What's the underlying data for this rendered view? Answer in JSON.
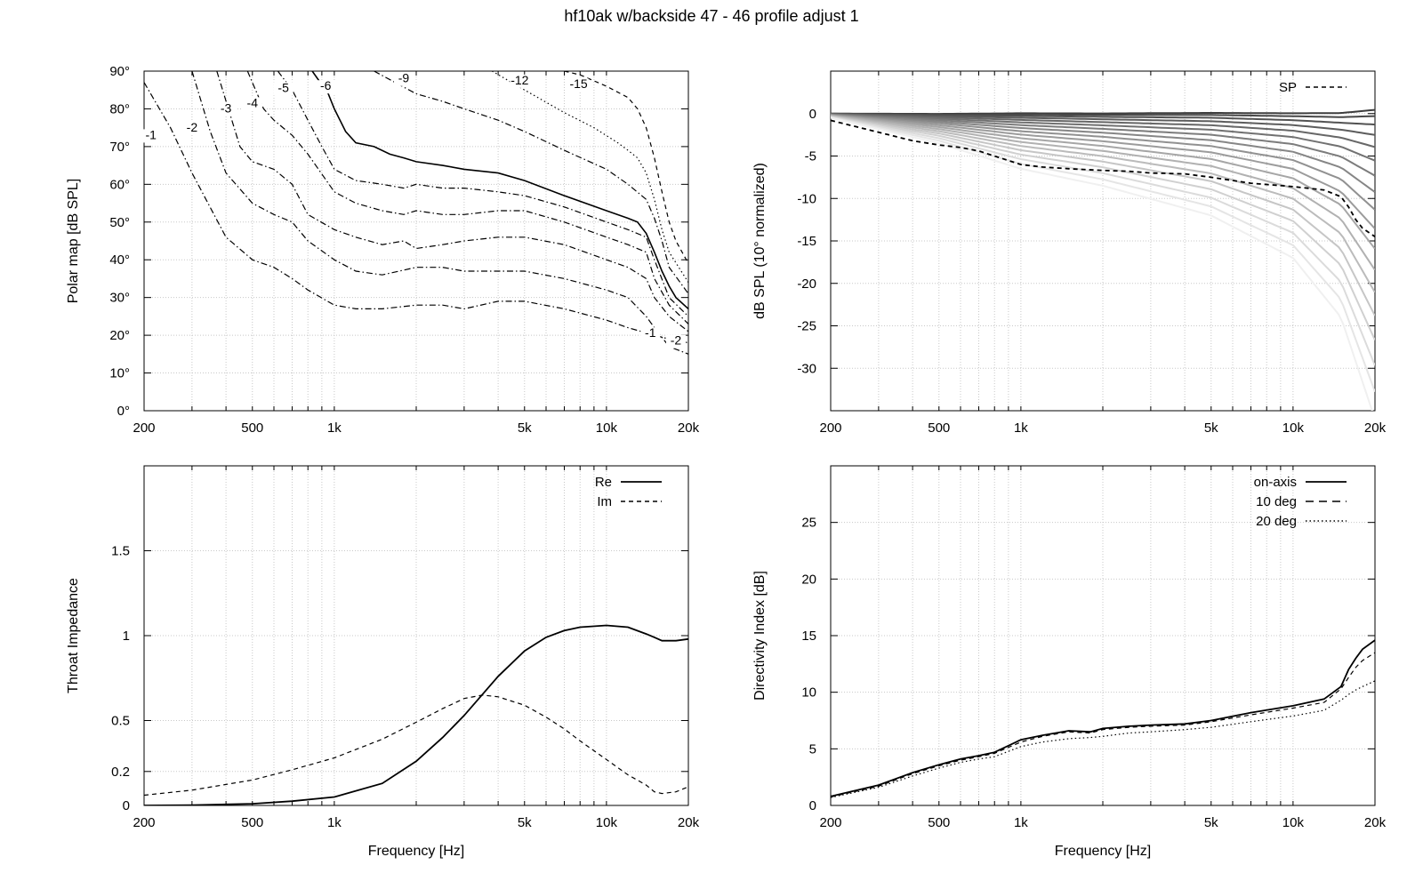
{
  "title": "hf10ak w/backside 47 - 46 profile adjust 1",
  "colors": {
    "axis": "#000000",
    "grid": "#c8c8c8"
  },
  "chart_data": [
    {
      "id": "polar",
      "type": "line",
      "subtype": "contour",
      "xscale": "log",
      "xlim": [
        200,
        20000
      ],
      "ylim": [
        0,
        90
      ],
      "xticks": [
        {
          "v": 200,
          "label": "200"
        },
        {
          "v": 500,
          "label": "500"
        },
        {
          "v": 1000,
          "label": "1k"
        },
        {
          "v": 5000,
          "label": "5k"
        },
        {
          "v": 10000,
          "label": "10k"
        },
        {
          "v": 20000,
          "label": "20k"
        }
      ],
      "yticks": [
        {
          "v": 0,
          "label": "0°"
        },
        {
          "v": 10,
          "label": "10°"
        },
        {
          "v": 20,
          "label": "20°"
        },
        {
          "v": 30,
          "label": "30°"
        },
        {
          "v": 40,
          "label": "40°"
        },
        {
          "v": 50,
          "label": "50°"
        },
        {
          "v": 60,
          "label": "60°"
        },
        {
          "v": 70,
          "label": "70°"
        },
        {
          "v": 80,
          "label": "80°"
        },
        {
          "v": 90,
          "label": "90°"
        }
      ],
      "xlabel": "",
      "ylabel": "Polar map [dB SPL]",
      "grid": true,
      "series": [
        {
          "name": "-1",
          "style": "dashdot",
          "x": [
            200,
            250,
            300,
            400,
            500,
            600,
            700,
            800,
            1000,
            1200,
            1500,
            2000,
            2500,
            3000,
            4000,
            5000,
            7000,
            10000,
            12000,
            15000,
            17000,
            20000
          ],
          "y": [
            87,
            75,
            63,
            46,
            40,
            38,
            35,
            32,
            28,
            27,
            27,
            28,
            28,
            27,
            29,
            29,
            27,
            24,
            22,
            20,
            19,
            18
          ]
        },
        {
          "name": "-2",
          "style": "dashdot",
          "x": [
            300,
            350,
            400,
            500,
            600,
            700,
            800,
            1000,
            1200,
            1500,
            2000,
            2500,
            3000,
            4000,
            5000,
            7000,
            10000,
            12000,
            14000,
            15000,
            17000,
            20000
          ],
          "y": [
            90,
            74,
            63,
            55,
            52,
            50,
            45,
            40,
            37,
            36,
            38,
            38,
            37,
            37,
            37,
            35,
            32,
            30,
            25,
            22,
            17,
            15
          ]
        },
        {
          "name": "-3",
          "style": "dashdot",
          "x": [
            370,
            450,
            500,
            600,
            700,
            800,
            1000,
            1200,
            1500,
            1800,
            2000,
            2500,
            3000,
            4000,
            5000,
            7000,
            10000,
            12000,
            14000,
            15000,
            17000,
            20000
          ],
          "y": [
            90,
            70,
            66,
            64,
            60,
            52,
            48,
            46,
            44,
            45,
            43,
            44,
            45,
            46,
            46,
            44,
            40,
            38,
            35,
            30,
            25,
            21
          ]
        },
        {
          "name": "-4",
          "style": "dashdot",
          "x": [
            480,
            550,
            600,
            700,
            800,
            1000,
            1200,
            1500,
            1800,
            2000,
            2500,
            3000,
            4000,
            5000,
            7000,
            10000,
            12000,
            14000,
            15000,
            17000,
            20000
          ],
          "y": [
            90,
            80,
            77,
            73,
            68,
            58,
            55,
            53,
            52,
            53,
            52,
            52,
            53,
            53,
            50,
            46,
            44,
            42,
            35,
            28,
            23
          ]
        },
        {
          "name": "-5",
          "style": "dashdot",
          "x": [
            620,
            700,
            800,
            900,
            1000,
            1200,
            1500,
            1800,
            2000,
            2500,
            3000,
            4000,
            5000,
            7000,
            10000,
            12000,
            14000,
            15000,
            17000,
            20000
          ],
          "y": [
            90,
            85,
            77,
            70,
            64,
            61,
            60,
            59,
            60,
            59,
            59,
            58,
            57,
            54,
            50,
            48,
            46,
            40,
            30,
            25
          ]
        },
        {
          "name": "-6",
          "style": "solid",
          "x": [
            830,
            950,
            1000,
            1100,
            1200,
            1400,
            1600,
            1800,
            2000,
            2500,
            3000,
            4000,
            5000,
            7000,
            10000,
            12000,
            13000,
            14000,
            15000,
            16000,
            17000,
            18000,
            20000
          ],
          "y": [
            90,
            84,
            80,
            74,
            71,
            70,
            68,
            67,
            66,
            65,
            64,
            63,
            61,
            57,
            53,
            51,
            50,
            47,
            42,
            37,
            33,
            30,
            27
          ]
        },
        {
          "name": "-9",
          "style": "dashdot",
          "x": [
            1400,
            2000,
            2500,
            3000,
            4000,
            5000,
            7000,
            10000,
            12000,
            14000,
            15000,
            16000,
            17000,
            20000
          ],
          "y": [
            90,
            84,
            82,
            80,
            77,
            74,
            69,
            64,
            60,
            56,
            51,
            45,
            38,
            31
          ]
        },
        {
          "name": "-12",
          "style": "dotted",
          "x": [
            3800,
            5000,
            7000,
            9000,
            11000,
            12000,
            13000,
            14000,
            15000,
            16000,
            17000,
            20000
          ],
          "y": [
            90,
            85,
            79,
            75,
            71,
            69,
            67,
            63,
            56,
            48,
            42,
            34
          ]
        },
        {
          "name": "-15",
          "style": "dashed",
          "x": [
            7000,
            8000,
            10000,
            12000,
            13000,
            14000,
            15000,
            16000,
            17000,
            18000,
            20000
          ],
          "y": [
            90,
            89,
            86,
            83,
            80,
            75,
            67,
            58,
            50,
            45,
            39
          ]
        }
      ]
    },
    {
      "id": "normalized",
      "type": "line",
      "xscale": "log",
      "xlim": [
        200,
        20000
      ],
      "ylim": [
        -35,
        5
      ],
      "xticks": [
        {
          "v": 200,
          "label": "200"
        },
        {
          "v": 500,
          "label": "500"
        },
        {
          "v": 1000,
          "label": "1k"
        },
        {
          "v": 5000,
          "label": "5k"
        },
        {
          "v": 10000,
          "label": "10k"
        },
        {
          "v": 20000,
          "label": "20k"
        }
      ],
      "yticks": [
        {
          "v": 0,
          "label": "0"
        },
        {
          "v": -5,
          "label": "-5"
        },
        {
          "v": -10,
          "label": "-10"
        },
        {
          "v": -15,
          "label": "-15"
        },
        {
          "v": -20,
          "label": "-20"
        },
        {
          "v": -25,
          "label": "-25"
        },
        {
          "v": -30,
          "label": "-30"
        }
      ],
      "xlabel": "",
      "ylabel": "dB SPL (10° normalized)",
      "grid": true,
      "legend": "top-right",
      "family": {
        "x": [
          200,
          500,
          1000,
          2000,
          5000,
          10000,
          15000,
          20000
        ],
        "min": [
          -0.5,
          -3.5,
          -6.5,
          -8.5,
          -12,
          -17,
          -24,
          -36
        ],
        "max": [
          0,
          0,
          0.1,
          0.1,
          0.2,
          0.2,
          0.3,
          0.8
        ],
        "count": 18
      },
      "series": [
        {
          "name": "SP",
          "style": "dashed",
          "x": [
            200,
            300,
            400,
            500,
            600,
            700,
            800,
            1000,
            1200,
            1500,
            2000,
            2500,
            3000,
            4000,
            5000,
            7000,
            10000,
            13000,
            15000,
            16000,
            17000,
            18000,
            20000
          ],
          "y": [
            -0.8,
            -2.2,
            -3.2,
            -3.7,
            -4,
            -4.4,
            -5,
            -6,
            -6.3,
            -6.5,
            -6.7,
            -6.8,
            -7,
            -7.1,
            -7.5,
            -8.2,
            -8.6,
            -9,
            -9.8,
            -11,
            -12.5,
            -13.5,
            -14.5
          ]
        }
      ]
    },
    {
      "id": "impedance",
      "type": "line",
      "xscale": "log",
      "xlim": [
        200,
        20000
      ],
      "ylim": [
        0,
        2
      ],
      "xticks": [
        {
          "v": 200,
          "label": "200"
        },
        {
          "v": 500,
          "label": "500"
        },
        {
          "v": 1000,
          "label": "1k"
        },
        {
          "v": 5000,
          "label": "5k"
        },
        {
          "v": 10000,
          "label": "10k"
        },
        {
          "v": 20000,
          "label": "20k"
        }
      ],
      "yticks": [
        {
          "v": 0,
          "label": "0"
        },
        {
          "v": 0.2,
          "label": "0.2"
        },
        {
          "v": 0.5,
          "label": "0.5"
        },
        {
          "v": 1,
          "label": "1"
        },
        {
          "v": 1.5,
          "label": "1.5"
        }
      ],
      "xlabel": "Frequency [Hz]",
      "ylabel": "Throat Impedance",
      "grid": true,
      "legend": "top-right",
      "series": [
        {
          "name": "Re",
          "style": "solid",
          "x": [
            200,
            300,
            500,
            700,
            1000,
            1500,
            2000,
            2500,
            3000,
            4000,
            5000,
            6000,
            7000,
            8000,
            10000,
            12000,
            14000,
            15000,
            16000,
            18000,
            20000
          ],
          "y": [
            0,
            0.002,
            0.01,
            0.025,
            0.05,
            0.13,
            0.26,
            0.4,
            0.53,
            0.76,
            0.91,
            0.99,
            1.03,
            1.05,
            1.06,
            1.05,
            1.01,
            0.99,
            0.97,
            0.97,
            0.98
          ]
        },
        {
          "name": "Im",
          "style": "dashed",
          "x": [
            200,
            300,
            500,
            700,
            1000,
            1500,
            2000,
            2500,
            3000,
            3500,
            4000,
            5000,
            6000,
            7000,
            8000,
            10000,
            12000,
            14000,
            15000,
            16000,
            18000,
            20000
          ],
          "y": [
            0.06,
            0.09,
            0.15,
            0.21,
            0.28,
            0.39,
            0.49,
            0.57,
            0.63,
            0.65,
            0.64,
            0.59,
            0.52,
            0.45,
            0.38,
            0.27,
            0.18,
            0.12,
            0.08,
            0.07,
            0.08,
            0.11
          ]
        }
      ]
    },
    {
      "id": "directivity",
      "type": "line",
      "xscale": "log",
      "xlim": [
        200,
        20000
      ],
      "ylim": [
        0,
        30
      ],
      "xticks": [
        {
          "v": 200,
          "label": "200"
        },
        {
          "v": 500,
          "label": "500"
        },
        {
          "v": 1000,
          "label": "1k"
        },
        {
          "v": 5000,
          "label": "5k"
        },
        {
          "v": 10000,
          "label": "10k"
        },
        {
          "v": 20000,
          "label": "20k"
        }
      ],
      "yticks": [
        {
          "v": 0,
          "label": "0"
        },
        {
          "v": 5,
          "label": "5"
        },
        {
          "v": 10,
          "label": "10"
        },
        {
          "v": 15,
          "label": "15"
        },
        {
          "v": 20,
          "label": "20"
        },
        {
          "v": 25,
          "label": "25"
        }
      ],
      "xlabel": "Frequency [Hz]",
      "ylabel": "Directivity Index [dB]",
      "grid": true,
      "legend": "top-right",
      "series": [
        {
          "name": "on-axis",
          "style": "solid",
          "x": [
            200,
            300,
            400,
            500,
            600,
            700,
            800,
            1000,
            1200,
            1500,
            1800,
            2000,
            2500,
            3000,
            4000,
            5000,
            7000,
            10000,
            13000,
            15000,
            16000,
            17000,
            18000,
            20000
          ],
          "y": [
            0.8,
            1.8,
            2.9,
            3.6,
            4.1,
            4.4,
            4.7,
            5.8,
            6.2,
            6.6,
            6.5,
            6.8,
            7,
            7.1,
            7.2,
            7.5,
            8.2,
            8.8,
            9.4,
            10.5,
            12,
            13,
            13.8,
            14.6
          ]
        },
        {
          "name": "10 deg",
          "style": "dashed",
          "x": [
            200,
            300,
            400,
            500,
            600,
            700,
            800,
            1000,
            1200,
            1500,
            1800,
            2000,
            2500,
            3000,
            4000,
            5000,
            7000,
            10000,
            13000,
            15000,
            16000,
            17000,
            18000,
            20000
          ],
          "y": [
            0.75,
            1.7,
            2.8,
            3.5,
            4,
            4.3,
            4.6,
            5.6,
            6.1,
            6.5,
            6.4,
            6.7,
            6.9,
            7,
            7.1,
            7.4,
            8,
            8.6,
            9.1,
            10.3,
            11.3,
            12.2,
            12.8,
            13.5
          ]
        },
        {
          "name": "20 deg",
          "style": "dotted",
          "x": [
            200,
            300,
            400,
            500,
            600,
            700,
            800,
            1000,
            1200,
            1500,
            1800,
            2000,
            2500,
            3000,
            4000,
            5000,
            7000,
            10000,
            13000,
            15000,
            16000,
            17000,
            18000,
            20000
          ],
          "y": [
            0.7,
            1.6,
            2.6,
            3.3,
            3.8,
            4.1,
            4.3,
            5.2,
            5.6,
            5.9,
            6,
            6.1,
            6.4,
            6.5,
            6.7,
            6.9,
            7.4,
            7.9,
            8.4,
            9.3,
            9.8,
            10.2,
            10.5,
            11
          ]
        }
      ]
    }
  ]
}
